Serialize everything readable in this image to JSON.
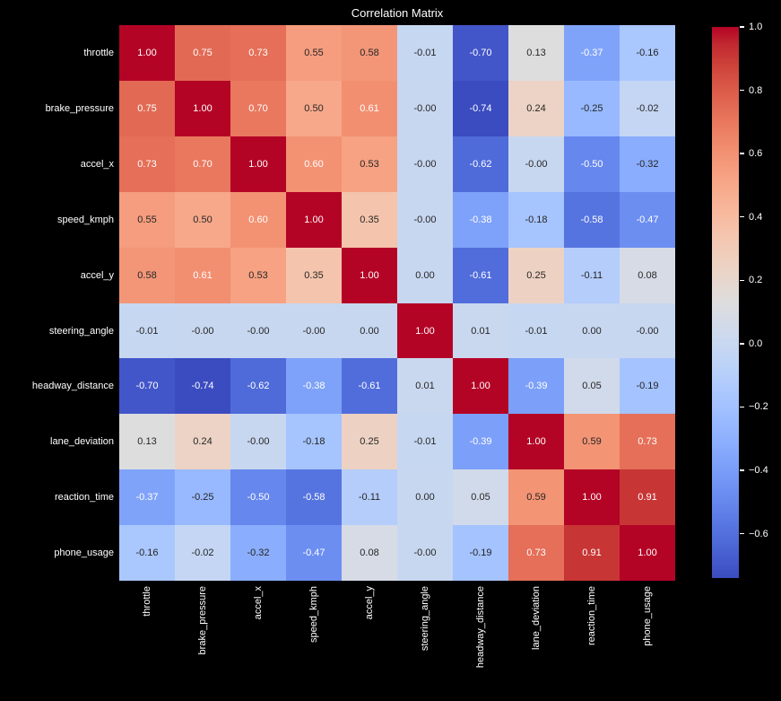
{
  "title": "Correlation Matrix",
  "colors": {
    "background": "#000000",
    "label_text": "#ffffff",
    "annot_light": "#ffffff",
    "annot_dark": "#262626",
    "cmap_min": "#3b4cc0",
    "cmap_mid": "#dddddd",
    "cmap_max": "#b40426"
  },
  "chart_data": {
    "type": "heatmap",
    "title": "Correlation Matrix",
    "colormap": "coolwarm",
    "vmin": -0.74,
    "vmax": 1.0,
    "grid": false,
    "legend_position": "right-colorbar",
    "x_labels": [
      "throttle",
      "brake_pressure",
      "accel_x",
      "speed_kmph",
      "accel_y",
      "steering_angle",
      "headway_distance",
      "lane_deviation",
      "reaction_time",
      "phone_usage"
    ],
    "y_labels": [
      "throttle",
      "brake_pressure",
      "accel_x",
      "speed_kmph",
      "accel_y",
      "steering_angle",
      "headway_distance",
      "lane_deviation",
      "reaction_time",
      "phone_usage"
    ],
    "cell_text": [
      [
        "1.00",
        "0.75",
        "0.73",
        "0.55",
        "0.58",
        "-0.01",
        "-0.70",
        "0.13",
        "-0.37",
        "-0.16"
      ],
      [
        "0.75",
        "1.00",
        "0.70",
        "0.50",
        "0.61",
        "-0.00",
        "-0.74",
        "0.24",
        "-0.25",
        "-0.02"
      ],
      [
        "0.73",
        "0.70",
        "1.00",
        "0.60",
        "0.53",
        "-0.00",
        "-0.62",
        "-0.00",
        "-0.50",
        "-0.32"
      ],
      [
        "0.55",
        "0.50",
        "0.60",
        "1.00",
        "0.35",
        "-0.00",
        "-0.38",
        "-0.18",
        "-0.58",
        "-0.47"
      ],
      [
        "0.58",
        "0.61",
        "0.53",
        "0.35",
        "1.00",
        "0.00",
        "-0.61",
        "0.25",
        "-0.11",
        "0.08"
      ],
      [
        "-0.01",
        "-0.00",
        "-0.00",
        "-0.00",
        "0.00",
        "1.00",
        "0.01",
        "-0.01",
        "0.00",
        "-0.00"
      ],
      [
        "-0.70",
        "-0.74",
        "-0.62",
        "-0.38",
        "-0.61",
        "0.01",
        "1.00",
        "-0.39",
        "0.05",
        "-0.19"
      ],
      [
        "0.13",
        "0.24",
        "-0.00",
        "-0.18",
        "0.25",
        "-0.01",
        "-0.39",
        "1.00",
        "0.59",
        "0.73"
      ],
      [
        "-0.37",
        "-0.25",
        "-0.50",
        "-0.58",
        "-0.11",
        "0.00",
        "0.05",
        "0.59",
        "1.00",
        "0.91"
      ],
      [
        "-0.16",
        "-0.02",
        "-0.32",
        "-0.47",
        "0.08",
        "-0.00",
        "-0.19",
        "0.73",
        "0.91",
        "1.00"
      ]
    ],
    "colorbar_ticks": [
      {
        "label": "1.0",
        "value": 1.0
      },
      {
        "label": "0.8",
        "value": 0.8
      },
      {
        "label": "0.6",
        "value": 0.6
      },
      {
        "label": "0.4",
        "value": 0.4
      },
      {
        "label": "0.2",
        "value": 0.2
      },
      {
        "label": "0.0",
        "value": 0.0
      },
      {
        "label": "−0.2",
        "value": -0.2
      },
      {
        "label": "−0.4",
        "value": -0.4
      },
      {
        "label": "−0.6",
        "value": -0.6
      }
    ]
  }
}
